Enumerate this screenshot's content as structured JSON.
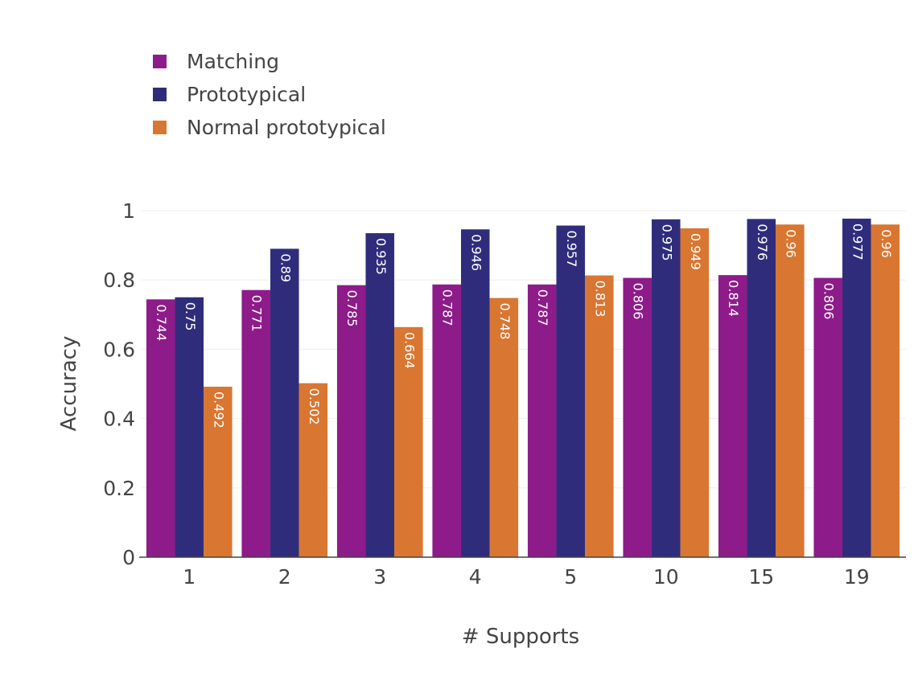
{
  "chart_data": {
    "type": "bar",
    "categories": [
      "1",
      "2",
      "3",
      "4",
      "5",
      "10",
      "15",
      "19"
    ],
    "series": [
      {
        "name": "Matching",
        "color": "#8e1b8a",
        "values": [
          0.744,
          0.771,
          0.785,
          0.787,
          0.787,
          0.806,
          0.814,
          0.806
        ],
        "labels": [
          "0.744",
          "0.771",
          "0.785",
          "0.787",
          "0.787",
          "0.806",
          "0.814",
          "0.806"
        ]
      },
      {
        "name": "Prototypical",
        "color": "#2f2d7b",
        "values": [
          0.75,
          0.89,
          0.935,
          0.946,
          0.957,
          0.975,
          0.976,
          0.977
        ],
        "labels": [
          "0.75",
          "0.89",
          "0.935",
          "0.946",
          "0.957",
          "0.975",
          "0.976",
          "0.977"
        ]
      },
      {
        "name": "Normal prototypical",
        "color": "#d97631",
        "values": [
          0.492,
          0.502,
          0.664,
          0.748,
          0.813,
          0.949,
          0.96,
          0.96
        ],
        "labels": [
          "0.492",
          "0.502",
          "0.664",
          "0.748",
          "0.813",
          "0.949",
          "0.96",
          "0.96"
        ]
      }
    ],
    "title": "",
    "xlabel": "# Supports",
    "ylabel": "Accuracy",
    "ylim": [
      0,
      1
    ],
    "yticks": [
      "0",
      "0.2",
      "0.4",
      "0.6",
      "0.8",
      "1"
    ],
    "grid": true,
    "legend_position": "top-left"
  }
}
